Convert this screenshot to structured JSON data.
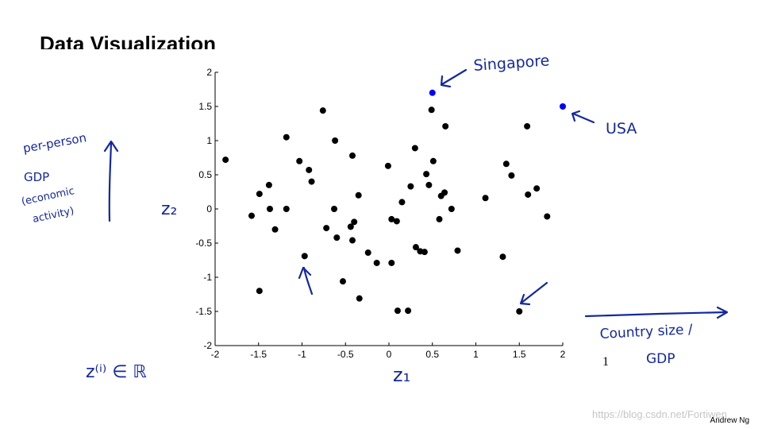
{
  "slide": {
    "title": "Data Visualization",
    "page_number": "1",
    "author": "Andrew Ng",
    "watermark": "https://blog.csdn.net/Fortiwen"
  },
  "annotations": {
    "left_note": [
      "per-person",
      "GDP",
      "(economic",
      "activity)"
    ],
    "y_var": "z₂",
    "x_var": "z₁",
    "bottom_left": "z⁽ⁱ⁾ ∈ ℝ",
    "singapore": "Singapore",
    "usa": "USA",
    "bottom_right": [
      "Country size /",
      "GDP"
    ]
  },
  "colors": {
    "points": "#000000",
    "highlight": "#0000ff",
    "ink": "#1428a0"
  },
  "chart_data": {
    "type": "scatter",
    "title": "",
    "xlabel": "",
    "ylabel": "",
    "xlim": [
      -2,
      2
    ],
    "ylim": [
      -2,
      2
    ],
    "xticks": [
      "-2",
      "-1.5",
      "-1",
      "-0.5",
      "0",
      "0.5",
      "1",
      "1.5",
      "2"
    ],
    "yticks": [
      "2",
      "1.5",
      "1",
      "0.5",
      "0",
      "-0.5",
      "-1",
      "-1.5",
      "-2"
    ],
    "grid": false,
    "series": [
      {
        "color": "#000000",
        "points": [
          [
            -1.88,
            0.72
          ],
          [
            -1.58,
            -0.1
          ],
          [
            -1.49,
            0.22
          ],
          [
            -1.49,
            -1.2
          ],
          [
            -1.38,
            0.35
          ],
          [
            -1.37,
            0.0
          ],
          [
            -1.31,
            -0.3
          ],
          [
            -1.18,
            1.05
          ],
          [
            -1.18,
            0.0
          ],
          [
            -1.03,
            0.7
          ],
          [
            -0.97,
            -0.69
          ],
          [
            -0.92,
            0.57
          ],
          [
            -0.89,
            0.4
          ],
          [
            -0.76,
            1.44
          ],
          [
            -0.72,
            -0.28
          ],
          [
            -0.62,
            1.0
          ],
          [
            -0.63,
            0.0
          ],
          [
            -0.6,
            -0.42
          ],
          [
            -0.53,
            -1.06
          ],
          [
            -0.44,
            -0.26
          ],
          [
            -0.42,
            0.78
          ],
          [
            -0.42,
            -0.46
          ],
          [
            -0.4,
            -0.19
          ],
          [
            -0.35,
            0.2
          ],
          [
            -0.34,
            -1.31
          ],
          [
            -0.24,
            -0.64
          ],
          [
            -0.14,
            -0.79
          ],
          [
            -0.01,
            0.63
          ],
          [
            0.03,
            -0.79
          ],
          [
            0.03,
            -0.15
          ],
          [
            0.09,
            -0.18
          ],
          [
            0.1,
            -1.49
          ],
          [
            0.15,
            0.1
          ],
          [
            0.22,
            -1.49
          ],
          [
            0.25,
            0.33
          ],
          [
            0.3,
            0.89
          ],
          [
            0.31,
            -0.56
          ],
          [
            0.36,
            -0.62
          ],
          [
            0.41,
            -0.63
          ],
          [
            0.43,
            0.51
          ],
          [
            0.46,
            0.35
          ],
          [
            0.49,
            1.45
          ],
          [
            0.51,
            0.7
          ],
          [
            0.58,
            -0.15
          ],
          [
            0.6,
            0.19
          ],
          [
            0.64,
            0.24
          ],
          [
            0.65,
            1.21
          ],
          [
            0.72,
            0.0
          ],
          [
            0.79,
            -0.61
          ],
          [
            1.11,
            0.16
          ],
          [
            1.31,
            -0.7
          ],
          [
            1.35,
            0.66
          ],
          [
            1.41,
            0.49
          ],
          [
            1.5,
            -1.5
          ],
          [
            1.59,
            1.21
          ],
          [
            1.6,
            0.21
          ],
          [
            1.7,
            0.3
          ],
          [
            1.82,
            -0.11
          ]
        ]
      },
      {
        "color": "#0000ff",
        "points": [
          [
            0.5,
            1.7
          ],
          [
            2.0,
            1.5
          ]
        ]
      }
    ]
  }
}
